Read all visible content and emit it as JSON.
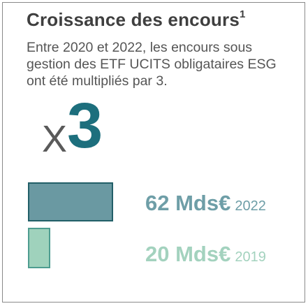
{
  "title": "Croissance des encours",
  "title_footnote": "1",
  "description": [
    "Entre 2020 et 2022, les encours sous",
    "gestion des ETF UCITS obligataires ESG",
    "ont été multipliés par 3."
  ],
  "factor": {
    "prefix": "X",
    "number": "3"
  },
  "colors": {
    "bar_2022_fill": "#6a99a2",
    "bar_2022_stroke": "#225f68",
    "bar_2019_fill": "#9fd2bc",
    "bar_2019_stroke": "#4e9d90",
    "factor_number": "#1d6f7d",
    "border": "#8a8a8a"
  },
  "chart_data": {
    "type": "bar",
    "orientation": "horizontal",
    "unit": "Mds€",
    "categories": [
      "2022",
      "2019"
    ],
    "values": [
      62,
      20
    ],
    "labels": [
      {
        "value_text": "62 Mds€",
        "year": "2022"
      },
      {
        "value_text": "20 Mds€",
        "year": "2019"
      }
    ]
  }
}
